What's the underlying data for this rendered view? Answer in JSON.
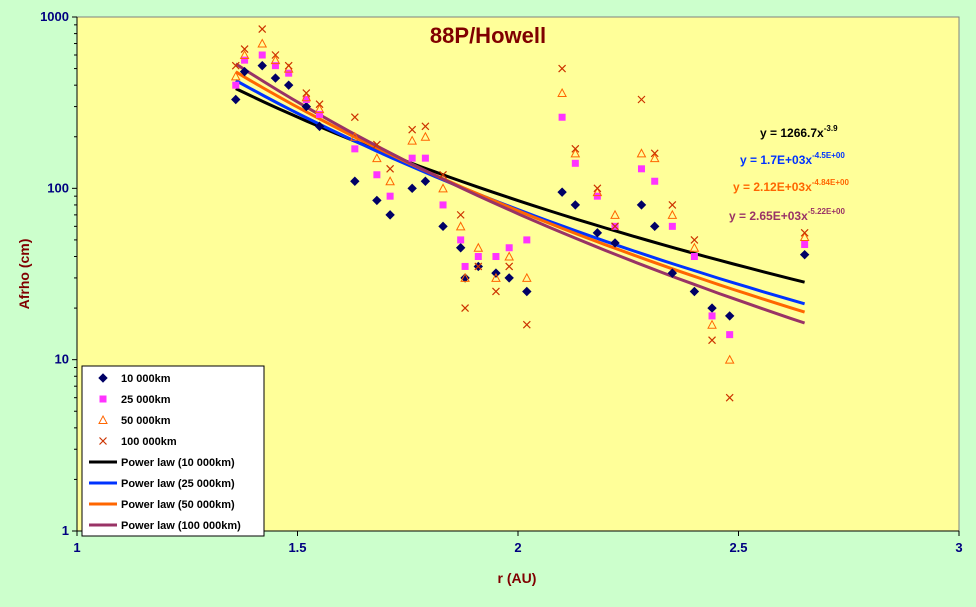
{
  "chart_data": {
    "type": "scatter",
    "title": "88P/Howell",
    "xlabel": "r (AU)",
    "ylabel": "Afrho (cm)",
    "x_scale": "linear",
    "y_scale": "log",
    "xlim": [
      1,
      3
    ],
    "ylim": [
      1,
      1000
    ],
    "x_ticks": [
      "1",
      "1.5",
      "2",
      "2.5",
      "3"
    ],
    "y_ticks": [
      "1",
      "10",
      "100",
      "1000"
    ],
    "grid": false,
    "legend_position": "bottom-left",
    "plot_background": "#ffff99",
    "figure_background": "#ccffcc",
    "series": [
      {
        "name": "10 000km",
        "marker": "diamond",
        "color": "#000066",
        "x": [
          1.36,
          1.38,
          1.42,
          1.45,
          1.48,
          1.52,
          1.55,
          1.63,
          1.68,
          1.71,
          1.76,
          1.79,
          1.83,
          1.87,
          1.88,
          1.91,
          1.95,
          1.98,
          2.02,
          2.1,
          2.13,
          2.18,
          2.22,
          2.28,
          2.31,
          2.35,
          2.4,
          2.44,
          2.48,
          2.65
        ],
        "y": [
          330,
          480,
          520,
          440,
          400,
          300,
          230,
          110,
          85,
          70,
          100,
          110,
          60,
          45,
          30,
          35,
          32,
          30,
          25,
          95,
          80,
          55,
          48,
          80,
          60,
          32,
          25,
          20,
          18,
          41
        ]
      },
      {
        "name": "25 000km",
        "marker": "square",
        "color": "#ff33ff",
        "x": [
          1.36,
          1.38,
          1.42,
          1.45,
          1.48,
          1.52,
          1.55,
          1.63,
          1.68,
          1.71,
          1.76,
          1.79,
          1.83,
          1.87,
          1.88,
          1.91,
          1.95,
          1.98,
          2.02,
          2.1,
          2.13,
          2.18,
          2.22,
          2.28,
          2.31,
          2.35,
          2.4,
          2.44,
          2.48,
          2.65
        ],
        "y": [
          400,
          560,
          600,
          520,
          470,
          330,
          270,
          170,
          120,
          90,
          150,
          150,
          80,
          50,
          35,
          40,
          40,
          45,
          50,
          260,
          140,
          90,
          60,
          130,
          110,
          60,
          40,
          18,
          14,
          47
        ]
      },
      {
        "name": "50 000km",
        "marker": "triangle",
        "color": "#ff6600",
        "x": [
          1.36,
          1.38,
          1.42,
          1.45,
          1.48,
          1.52,
          1.55,
          1.63,
          1.68,
          1.71,
          1.76,
          1.79,
          1.83,
          1.87,
          1.88,
          1.91,
          1.95,
          1.98,
          2.02,
          2.1,
          2.13,
          2.18,
          2.22,
          2.28,
          2.31,
          2.35,
          2.4,
          2.44,
          2.48,
          2.65
        ],
        "y": [
          450,
          600,
          700,
          560,
          500,
          340,
          290,
          200,
          150,
          110,
          190,
          200,
          100,
          60,
          30,
          45,
          30,
          40,
          30,
          360,
          160,
          95,
          70,
          160,
          150,
          70,
          45,
          16,
          10,
          52
        ]
      },
      {
        "name": "100 000km",
        "marker": "cross",
        "color": "#cc3300",
        "x": [
          1.36,
          1.38,
          1.42,
          1.45,
          1.48,
          1.52,
          1.55,
          1.63,
          1.68,
          1.71,
          1.76,
          1.79,
          1.83,
          1.87,
          1.88,
          1.91,
          1.95,
          1.98,
          2.02,
          2.1,
          2.13,
          2.18,
          2.22,
          2.28,
          2.31,
          2.35,
          2.4,
          2.44,
          2.48,
          2.65
        ],
        "y": [
          520,
          650,
          850,
          600,
          520,
          360,
          310,
          260,
          180,
          130,
          220,
          230,
          120,
          70,
          20,
          35,
          25,
          35,
          16,
          500,
          170,
          100,
          60,
          330,
          160,
          80,
          50,
          13,
          6,
          55
        ]
      }
    ],
    "fits": [
      {
        "name": "Power law (10 000km)",
        "a": 1266.7,
        "b": -3.9,
        "color": "#000000",
        "equation": "y = 1266.7x",
        "exponent": "-3.9"
      },
      {
        "name": "Power law (25 000km)",
        "a": 1700,
        "b": -4.5,
        "color": "#0033ff",
        "equation": "y = 1.7E+03x",
        "exponent": "-4.5E+00"
      },
      {
        "name": "Power law (50 000km)",
        "a": 2120,
        "b": -4.84,
        "color": "#ff6600",
        "equation": "y = 2.12E+03x",
        "exponent": "-4.84E+00"
      },
      {
        "name": "Power law (100 000km)",
        "a": 2650,
        "b": -5.22,
        "color": "#993366",
        "equation": "y = 2.65E+03x",
        "exponent": "-5.22E+00"
      }
    ],
    "fit_range": [
      1.36,
      2.65
    ]
  }
}
